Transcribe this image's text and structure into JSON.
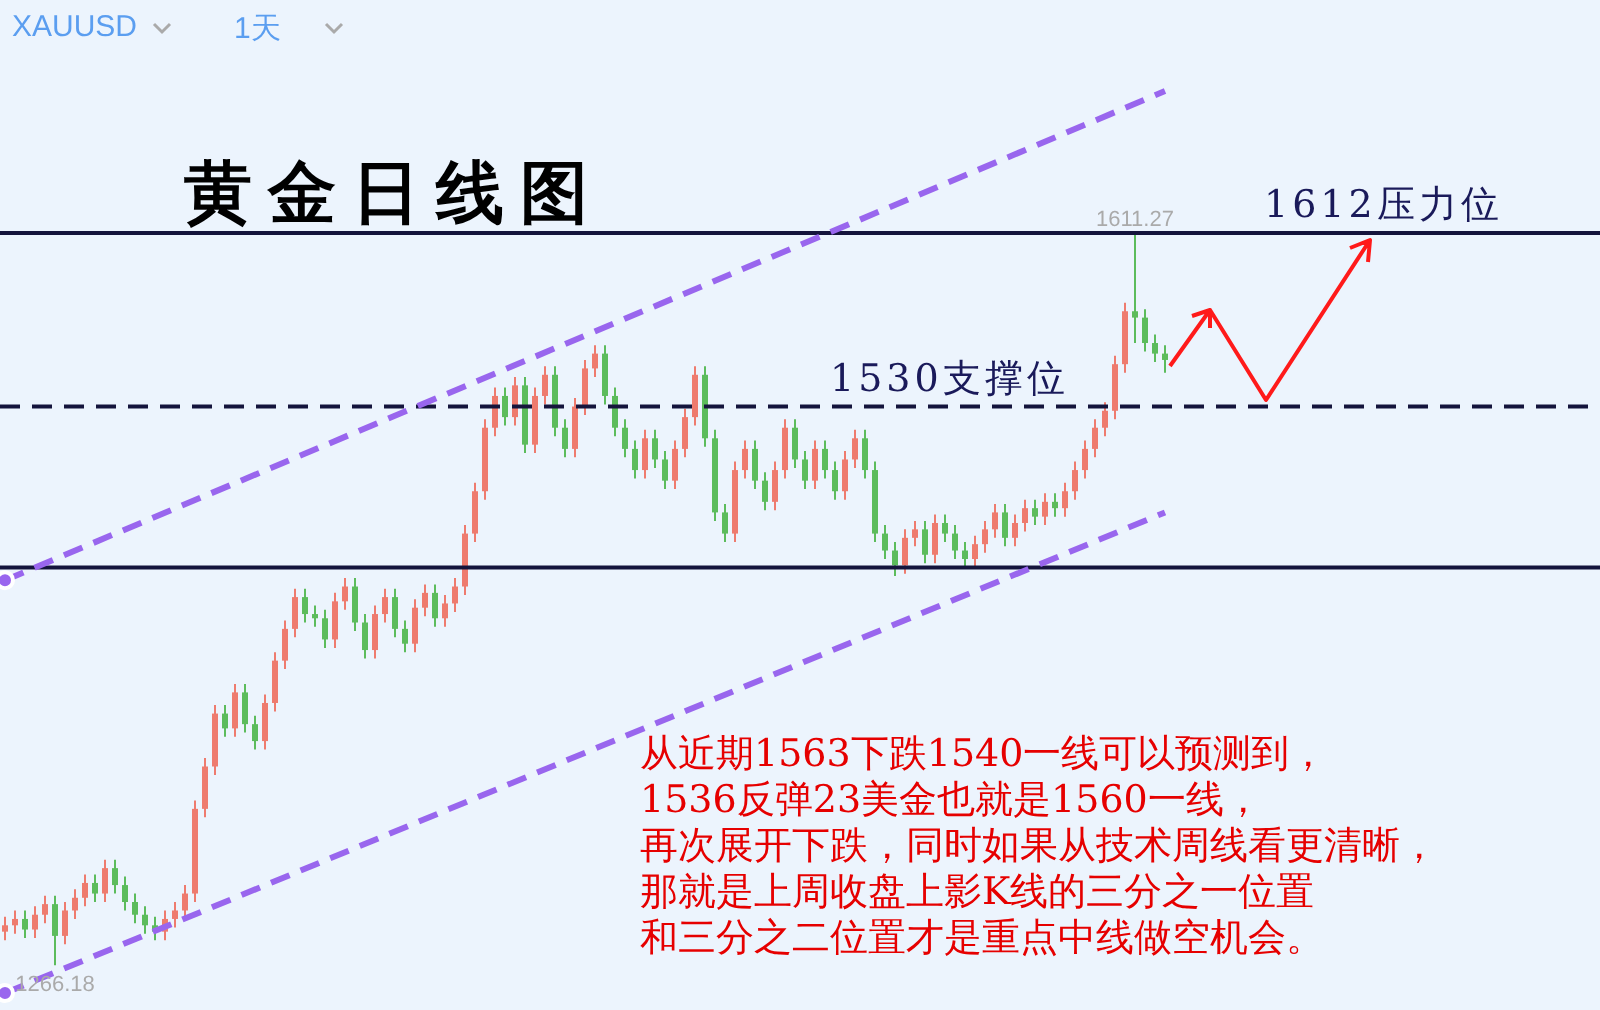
{
  "chart_data": {
    "type": "candlestick",
    "title": "黄金日线图",
    "categories": [
      null,
      null,
      null,
      null,
      null,
      null,
      null,
      null,
      null,
      null,
      null,
      null,
      null,
      null,
      null,
      null,
      null,
      null,
      null,
      null,
      null,
      null,
      null,
      null,
      null,
      null,
      null,
      null,
      null,
      null,
      null,
      null,
      null,
      null,
      null,
      null,
      null,
      null,
      null,
      null,
      null,
      null,
      null,
      null,
      null,
      null,
      null,
      null,
      null,
      null,
      null,
      null,
      null,
      null,
      null,
      null,
      null,
      null,
      null,
      null,
      null,
      null,
      null,
      null,
      null,
      null,
      null,
      null,
      null,
      null,
      null,
      null,
      null,
      null,
      null,
      null,
      null,
      null,
      null,
      null,
      null,
      null,
      null,
      null,
      null,
      null,
      null,
      null,
      null,
      null,
      null,
      null,
      null,
      null,
      null,
      null,
      null,
      null,
      null,
      null,
      null,
      null,
      null,
      null,
      null,
      null,
      null,
      null,
      null,
      null,
      null,
      null,
      null,
      null,
      null,
      null,
      null
    ],
    "ohlc": [
      [
        1282,
        1289,
        1278,
        1285
      ],
      [
        1285,
        1292,
        1281,
        1288
      ],
      [
        1288,
        1292,
        1279,
        1283
      ],
      [
        1283,
        1294,
        1279,
        1290
      ],
      [
        1290,
        1299,
        1286,
        1295
      ],
      [
        1295,
        1299,
        1266.18,
        1280
      ],
      [
        1280,
        1296,
        1276,
        1292
      ],
      [
        1292,
        1302,
        1288,
        1298
      ],
      [
        1298,
        1309,
        1294,
        1305
      ],
      [
        1305,
        1309,
        1296,
        1300
      ],
      [
        1300,
        1316,
        1296,
        1312
      ],
      [
        1312,
        1316,
        1300,
        1304
      ],
      [
        1304,
        1308,
        1292,
        1296
      ],
      [
        1296,
        1300,
        1286,
        1290
      ],
      [
        1290,
        1294,
        1281,
        1285
      ],
      [
        1285,
        1289,
        1278,
        1282
      ],
      [
        1282,
        1292,
        1278,
        1288
      ],
      [
        1288,
        1296,
        1284,
        1292
      ],
      [
        1292,
        1304,
        1288,
        1300
      ],
      [
        1300,
        1344,
        1296,
        1340
      ],
      [
        1340,
        1364,
        1336,
        1360
      ],
      [
        1360,
        1389,
        1356,
        1385
      ],
      [
        1385,
        1389,
        1374,
        1378
      ],
      [
        1378,
        1399,
        1374,
        1395
      ],
      [
        1395,
        1399,
        1376,
        1380
      ],
      [
        1380,
        1384,
        1368,
        1372
      ],
      [
        1372,
        1394,
        1368,
        1390
      ],
      [
        1390,
        1414,
        1386,
        1410
      ],
      [
        1410,
        1429,
        1406,
        1425
      ],
      [
        1425,
        1444,
        1421,
        1440
      ],
      [
        1440,
        1444,
        1428,
        1432
      ],
      [
        1432,
        1436,
        1426,
        1430
      ],
      [
        1430,
        1434,
        1416,
        1420
      ],
      [
        1420,
        1442,
        1416,
        1438
      ],
      [
        1438,
        1449,
        1434,
        1445
      ],
      [
        1445,
        1449,
        1424,
        1428
      ],
      [
        1428,
        1432,
        1411,
        1415
      ],
      [
        1415,
        1436,
        1411,
        1432
      ],
      [
        1432,
        1444,
        1428,
        1440
      ],
      [
        1440,
        1444,
        1421,
        1425
      ],
      [
        1425,
        1429,
        1414,
        1418
      ],
      [
        1418,
        1439,
        1414,
        1435
      ],
      [
        1435,
        1446,
        1431,
        1442
      ],
      [
        1442,
        1446,
        1426,
        1430
      ],
      [
        1430,
        1441,
        1426,
        1437
      ],
      [
        1437,
        1449,
        1433,
        1445
      ],
      [
        1445,
        1474,
        1441,
        1470
      ],
      [
        1470,
        1494,
        1466,
        1490
      ],
      [
        1490,
        1524,
        1486,
        1520
      ],
      [
        1520,
        1539,
        1516,
        1535
      ],
      [
        1535,
        1539,
        1521,
        1525
      ],
      [
        1525,
        1544,
        1521,
        1540
      ],
      [
        1540,
        1544,
        1508,
        1512
      ],
      [
        1512,
        1539,
        1508,
        1535
      ],
      [
        1535,
        1549,
        1531,
        1545
      ],
      [
        1545,
        1549,
        1516,
        1520
      ],
      [
        1520,
        1524,
        1506,
        1510
      ],
      [
        1510,
        1534,
        1506,
        1530
      ],
      [
        1530,
        1552,
        1526,
        1548
      ],
      [
        1548,
        1559,
        1544,
        1555
      ],
      [
        1555,
        1559,
        1531,
        1535
      ],
      [
        1535,
        1539,
        1516,
        1520
      ],
      [
        1520,
        1524,
        1506,
        1510
      ],
      [
        1510,
        1514,
        1496,
        1500
      ],
      [
        1500,
        1519,
        1496,
        1515
      ],
      [
        1515,
        1519,
        1501,
        1505
      ],
      [
        1505,
        1509,
        1491,
        1495
      ],
      [
        1495,
        1514,
        1491,
        1510
      ],
      [
        1510,
        1529,
        1506,
        1525
      ],
      [
        1525,
        1549,
        1521,
        1545
      ],
      [
        1545,
        1549,
        1511,
        1515
      ],
      [
        1515,
        1519,
        1476,
        1480
      ],
      [
        1480,
        1484,
        1466,
        1470
      ],
      [
        1470,
        1504,
        1466,
        1500
      ],
      [
        1500,
        1514,
        1496,
        1510
      ],
      [
        1510,
        1514,
        1491,
        1495
      ],
      [
        1495,
        1499,
        1481,
        1485
      ],
      [
        1485,
        1504,
        1481,
        1500
      ],
      [
        1500,
        1524,
        1496,
        1520
      ],
      [
        1520,
        1524,
        1501,
        1505
      ],
      [
        1505,
        1509,
        1491,
        1495
      ],
      [
        1495,
        1514,
        1491,
        1510
      ],
      [
        1510,
        1514,
        1496,
        1500
      ],
      [
        1500,
        1504,
        1486,
        1490
      ],
      [
        1490,
        1509,
        1486,
        1505
      ],
      [
        1505,
        1519,
        1501,
        1515
      ],
      [
        1515,
        1519,
        1496,
        1500
      ],
      [
        1500,
        1504,
        1466,
        1470
      ],
      [
        1470,
        1474,
        1458,
        1462
      ],
      [
        1462,
        1466,
        1450,
        1455
      ],
      [
        1455,
        1472,
        1451,
        1468
      ],
      [
        1468,
        1476,
        1464,
        1472
      ],
      [
        1472,
        1476,
        1456,
        1460
      ],
      [
        1460,
        1479,
        1456,
        1475
      ],
      [
        1475,
        1479,
        1466,
        1470
      ],
      [
        1470,
        1474,
        1458,
        1462
      ],
      [
        1462,
        1466,
        1454,
        1458
      ],
      [
        1458,
        1469,
        1454,
        1465
      ],
      [
        1465,
        1476,
        1461,
        1472
      ],
      [
        1472,
        1484,
        1468,
        1480
      ],
      [
        1480,
        1484,
        1464,
        1468
      ],
      [
        1468,
        1479,
        1464,
        1475
      ],
      [
        1475,
        1486,
        1471,
        1482
      ],
      [
        1482,
        1486,
        1474,
        1478
      ],
      [
        1478,
        1489,
        1474,
        1485
      ],
      [
        1485,
        1489,
        1478,
        1482
      ],
      [
        1482,
        1494,
        1478,
        1490
      ],
      [
        1490,
        1504,
        1486,
        1500
      ],
      [
        1500,
        1514,
        1496,
        1510
      ],
      [
        1510,
        1524,
        1506,
        1520
      ],
      [
        1520,
        1532,
        1516,
        1528
      ],
      [
        1528,
        1554,
        1524,
        1550
      ],
      [
        1550,
        1579,
        1546,
        1575
      ],
      [
        1575,
        1611.27,
        1560,
        1572
      ],
      [
        1572,
        1576,
        1556,
        1560
      ],
      [
        1560,
        1564,
        1551,
        1555
      ],
      [
        1555,
        1559,
        1546,
        1552
      ]
    ],
    "ylim": [
      1245,
      1722
    ],
    "tick_labels": false,
    "series": [
      {
        "type": "line",
        "color": "#9966ee",
        "line_style": "dashed",
        "values": [
          1448,
          null,
          null,
          null,
          null,
          null,
          null,
          null,
          null,
          null,
          null,
          null,
          null,
          null,
          null,
          null,
          null,
          null,
          null,
          null,
          null,
          null,
          null,
          null,
          null,
          null,
          null,
          null,
          null,
          null,
          null,
          null,
          null,
          null,
          null,
          null,
          null,
          null,
          null,
          null,
          null,
          null,
          null,
          null,
          null,
          null,
          null,
          null,
          null,
          null,
          null,
          null,
          null,
          null,
          null,
          null,
          null,
          null,
          null,
          null,
          null,
          null,
          null,
          null,
          null,
          null,
          null,
          null,
          null,
          null,
          null,
          null,
          null,
          null,
          null,
          null,
          null,
          null,
          null,
          null,
          null,
          null,
          null,
          null,
          null,
          null,
          null,
          null,
          null,
          null,
          null,
          null,
          null,
          null,
          null,
          null,
          null,
          null,
          null,
          null,
          null,
          null,
          null,
          null,
          null,
          null,
          null,
          null,
          null,
          null,
          null,
          null,
          null,
          null,
          null,
          null,
          1679
        ]
      },
      {
        "type": "line",
        "color": "#9966ee",
        "line_style": "dashed",
        "values": [
          1253,
          null,
          null,
          null,
          null,
          null,
          null,
          null,
          null,
          null,
          null,
          null,
          null,
          null,
          null,
          null,
          null,
          null,
          null,
          null,
          null,
          null,
          null,
          null,
          null,
          null,
          null,
          null,
          null,
          null,
          null,
          null,
          null,
          null,
          null,
          null,
          null,
          null,
          null,
          null,
          null,
          null,
          null,
          null,
          null,
          null,
          null,
          null,
          null,
          null,
          null,
          null,
          null,
          null,
          null,
          null,
          null,
          null,
          null,
          null,
          null,
          null,
          null,
          null,
          null,
          null,
          null,
          null,
          null,
          null,
          null,
          null,
          null,
          null,
          null,
          null,
          null,
          null,
          null,
          null,
          null,
          null,
          null,
          null,
          null,
          null,
          null,
          null,
          null,
          null,
          null,
          null,
          null,
          null,
          null,
          null,
          null,
          null,
          null,
          null,
          null,
          null,
          null,
          null,
          null,
          null,
          null,
          null,
          null,
          null,
          null,
          null,
          null,
          null,
          null,
          null,
          1480
        ]
      }
    ],
    "ref_lines": [
      {
        "axis": "y",
        "value": 1612,
        "label": "1612压力位",
        "color": "#14143c",
        "line_style": "solid"
      },
      {
        "axis": "y",
        "value": 1530,
        "label": "1530支撑位",
        "color": "#14143c",
        "line_style": "dashed"
      },
      {
        "axis": "y",
        "value": 1454,
        "color": "#14143c",
        "line_style": "solid"
      }
    ],
    "annotations": [
      {
        "text": "1611.27",
        "y": 1611.27
      },
      {
        "text": "1266.18",
        "y": 1266.18
      },
      "XAUUSD",
      "1天",
      "从近期1563下跌1540一线可以预测到，",
      "1536反弹23美金也就是1560一线，",
      "再次展开下跌，同时如果从技术周线看更清晰，",
      "那就是上周收盘上影K线的三分之一位置",
      "和三分之二位置才是重点中线做空机会。"
    ]
  }
}
